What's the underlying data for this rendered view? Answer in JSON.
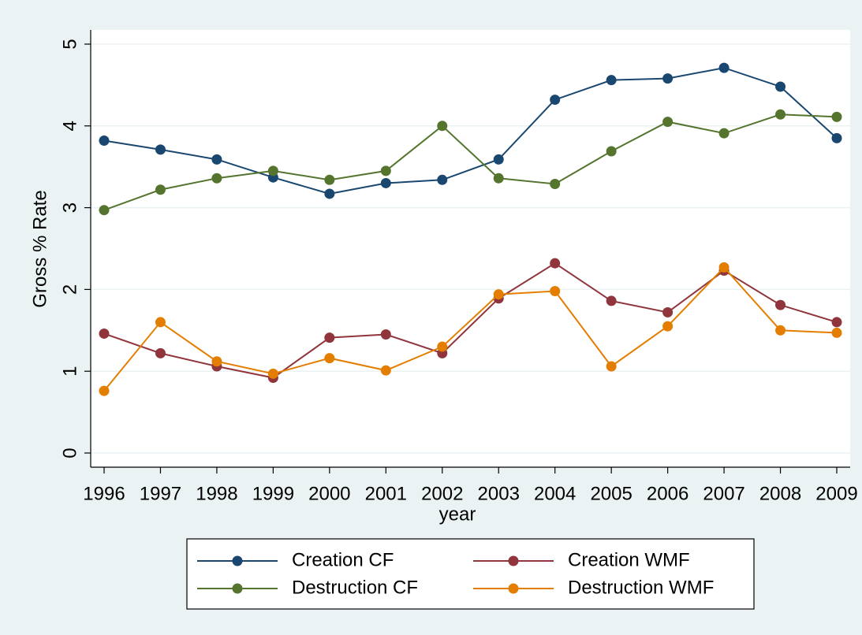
{
  "chart_data": {
    "type": "line",
    "x": [
      1996,
      1997,
      1998,
      1999,
      2000,
      2001,
      2002,
      2003,
      2004,
      2005,
      2006,
      2007,
      2008,
      2009
    ],
    "x_label": "year",
    "y_label": "Gross % Rate",
    "series": [
      {
        "name": "Creation CF",
        "color": "#1a476f",
        "values": [
          3.82,
          3.71,
          3.59,
          3.37,
          3.17,
          3.3,
          3.34,
          3.59,
          4.32,
          4.56,
          4.58,
          4.71,
          4.48,
          3.85
        ]
      },
      {
        "name": "Creation WMF",
        "color": "#90353b",
        "values": [
          1.46,
          1.22,
          1.06,
          0.92,
          1.41,
          1.45,
          1.22,
          1.89,
          2.32,
          1.86,
          1.72,
          2.23,
          1.81,
          1.6
        ]
      },
      {
        "name": "Destruction CF",
        "color": "#55752f",
        "values": [
          2.97,
          3.22,
          3.36,
          3.45,
          3.34,
          3.45,
          4.0,
          3.36,
          3.29,
          3.69,
          4.05,
          3.91,
          4.14,
          4.11
        ]
      },
      {
        "name": "Destruction WMF",
        "color": "#e37e00",
        "values": [
          0.76,
          1.6,
          1.12,
          0.97,
          1.16,
          1.01,
          1.3,
          1.94,
          1.98,
          1.06,
          1.55,
          2.27,
          1.5,
          1.47
        ]
      }
    ],
    "xlim": [
      1996,
      2009
    ],
    "xticks": [
      1996,
      1997,
      1998,
      1999,
      2000,
      2001,
      2002,
      2003,
      2004,
      2005,
      2006,
      2007,
      2008,
      2009
    ],
    "ylim": [
      0,
      5
    ],
    "yticks": [
      0,
      1,
      2,
      3,
      4,
      5
    ],
    "grid": true,
    "legend": "bottom"
  }
}
